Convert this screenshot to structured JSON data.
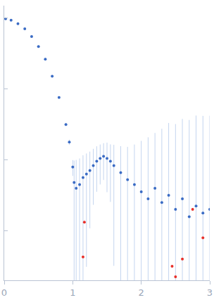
{
  "chart_data": {
    "type": "scatter",
    "log": "y",
    "tick_labels": "x",
    "grid": false,
    "xlim": [
      0,
      3
    ],
    "xticks": [
      0,
      1,
      2,
      3
    ],
    "ylim": [
      0.0002,
      1.5
    ],
    "yticks": [
      0.001,
      0.01,
      0.1,
      1
    ],
    "series": [
      {
        "color": "#3a6bc4",
        "marker": "circle",
        "x": [
          0.02,
          0.1,
          0.2,
          0.3,
          0.4,
          0.5,
          0.6,
          0.7,
          0.8,
          0.9,
          0.95,
          1.0,
          1.02,
          1.05,
          1.1,
          1.15,
          1.2,
          1.25,
          1.3,
          1.35,
          1.4,
          1.45,
          1.5,
          1.55,
          1.6,
          1.7,
          1.8,
          1.9,
          2.0,
          2.1,
          2.2,
          2.3,
          2.4,
          2.5,
          2.6,
          2.7,
          2.8,
          2.9,
          3.0
        ],
        "values": [
          0.977,
          0.933,
          0.832,
          0.708,
          0.55,
          0.398,
          0.263,
          0.151,
          0.0759,
          0.0316,
          0.0178,
          0.00794,
          0.00479,
          0.00398,
          0.00447,
          0.00562,
          0.00631,
          0.00708,
          0.00832,
          0.00955,
          0.0105,
          0.0112,
          0.0105,
          0.00955,
          0.00832,
          0.00661,
          0.00525,
          0.00447,
          0.00355,
          0.00282,
          0.00398,
          0.00251,
          0.00316,
          0.002,
          0.00282,
          0.00158,
          0.00224,
          0.00178,
          0.002
        ],
        "error": [
          0.005,
          0.005,
          0.004,
          0.004,
          0.003,
          0.003,
          0.002,
          0.002,
          0.0015,
          0.0012,
          0.0015,
          0.002,
          0.005,
          0.006,
          0.006,
          0.006,
          0.006,
          0.006,
          0.006,
          0.006,
          0.006,
          0.006,
          0.007,
          0.007,
          0.008,
          0.009,
          0.01,
          0.012,
          0.015,
          0.018,
          0.02,
          0.025,
          0.03,
          0.03,
          0.035,
          0.035,
          0.04,
          0.04,
          0.04
        ]
      },
      {
        "color": "#e8302a",
        "marker": "circle",
        "x": [
          1.15,
          1.17,
          2.45,
          2.5,
          2.6,
          2.75,
          2.9
        ],
        "values": [
          0.000427,
          0.00132,
          0.000316,
          0.000224,
          0.000398,
          0.002,
          0.000794
        ]
      }
    ]
  }
}
